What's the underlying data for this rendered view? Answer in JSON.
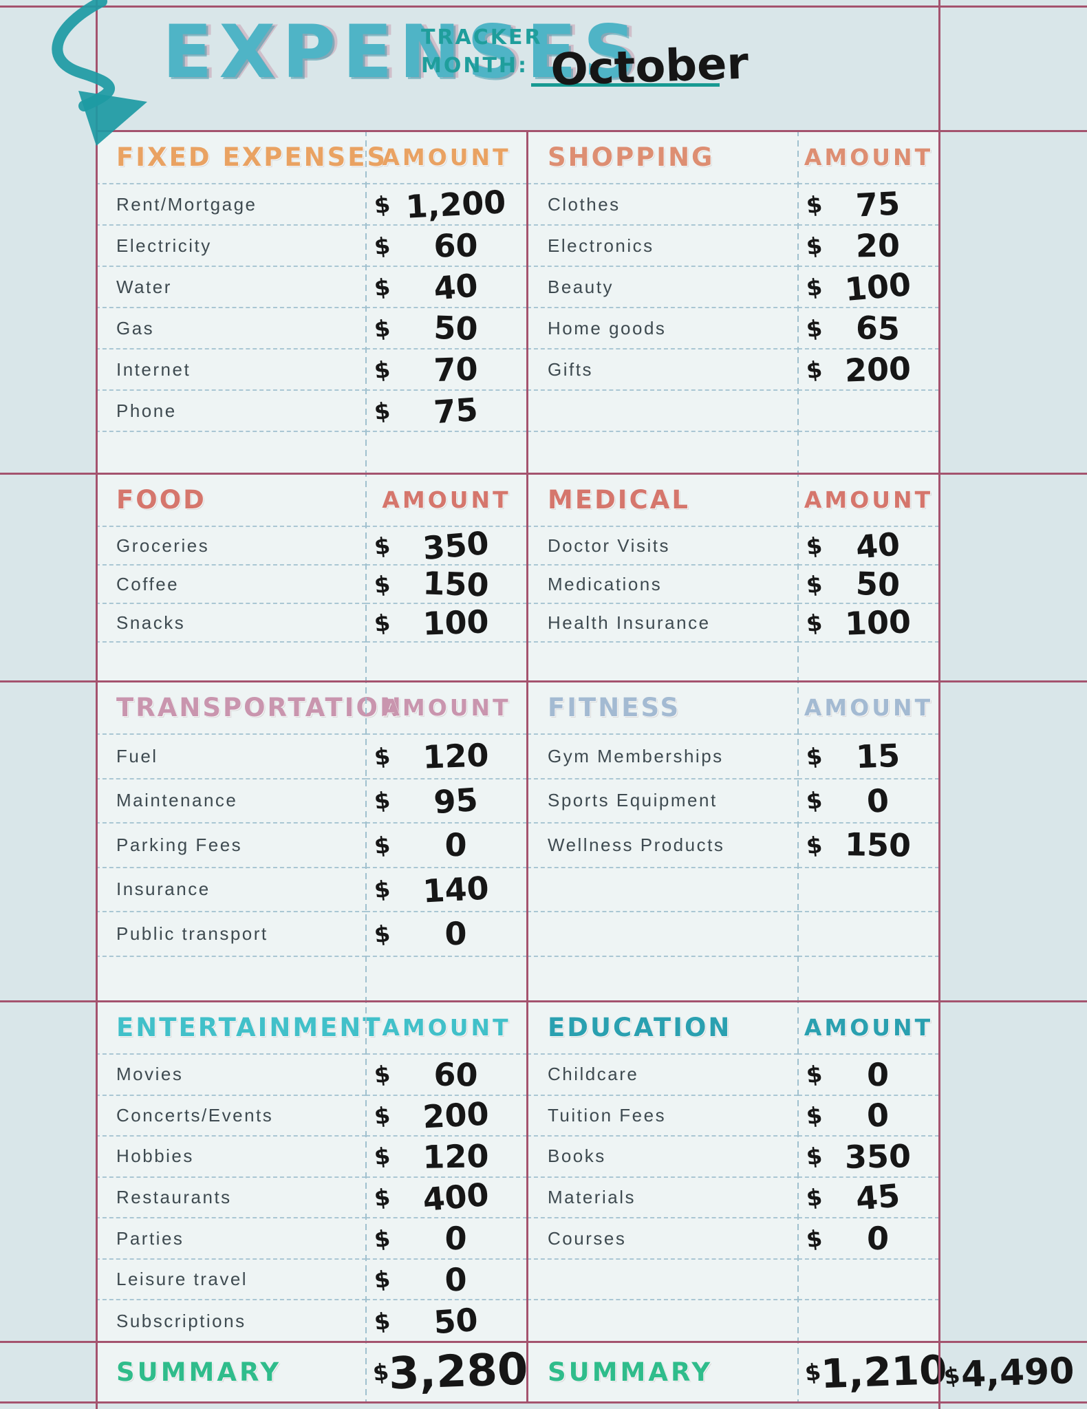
{
  "header": {
    "title": "EXPENSES",
    "tracker_label": "TRACKER",
    "month_label": "MONTH:",
    "month_value": "October"
  },
  "currency_symbol": "$",
  "amount_column_label": "AMOUNT",
  "colors": {
    "title_teal": "#4fb4c6",
    "tracker_teal": "#1f9e9c",
    "grid_pink": "#a4536e",
    "rule_blue": "#9fc0ce",
    "ink": "#161616"
  },
  "bands": [
    {
      "row_count": 7,
      "left": {
        "title": "FIXED EXPENSES",
        "color": "#e9a262",
        "rows": [
          {
            "label": "Rent/Mortgage",
            "amount": "1,200"
          },
          {
            "label": "Electricity",
            "amount": "60"
          },
          {
            "label": "Water",
            "amount": "40"
          },
          {
            "label": "Gas",
            "amount": "50"
          },
          {
            "label": "Internet",
            "amount": "70"
          },
          {
            "label": "Phone",
            "amount": "75"
          }
        ]
      },
      "right": {
        "title": "SHOPPING",
        "color": "#dd8e72",
        "rows": [
          {
            "label": "Clothes",
            "amount": "75"
          },
          {
            "label": "Electronics",
            "amount": "20"
          },
          {
            "label": "Beauty",
            "amount": "100"
          },
          {
            "label": "Home goods",
            "amount": "65"
          },
          {
            "label": "Gifts",
            "amount": "200"
          }
        ]
      }
    },
    {
      "row_count": 4,
      "left": {
        "title": "FOOD",
        "color": "#d5766c",
        "rows": [
          {
            "label": "Groceries",
            "amount": "350"
          },
          {
            "label": "Coffee",
            "amount": "150"
          },
          {
            "label": "Snacks",
            "amount": "100"
          }
        ]
      },
      "right": {
        "title": "MEDICAL",
        "color": "#d5766c",
        "rows": [
          {
            "label": "Doctor Visits",
            "amount": "40"
          },
          {
            "label": "Medications",
            "amount": "50"
          },
          {
            "label": "Health Insurance",
            "amount": "100"
          }
        ]
      }
    },
    {
      "row_count": 6,
      "left": {
        "title": "TRANSPORTATION",
        "color": "#c995ae",
        "rows": [
          {
            "label": "Fuel",
            "amount": "120"
          },
          {
            "label": "Maintenance",
            "amount": "95"
          },
          {
            "label": "Parking Fees",
            "amount": "0"
          },
          {
            "label": "Insurance",
            "amount": "140"
          },
          {
            "label": "Public transport",
            "amount": "0"
          }
        ]
      },
      "right": {
        "title": "FITNESS",
        "color": "#a3bad2",
        "rows": [
          {
            "label": "Gym Memberships",
            "amount": "15"
          },
          {
            "label": "Sports Equipment",
            "amount": "0"
          },
          {
            "label": "Wellness Products",
            "amount": "150"
          }
        ]
      }
    },
    {
      "row_count": 7,
      "left": {
        "title": "ENTERTAINMENT",
        "color": "#41c0c9",
        "rows": [
          {
            "label": "Movies",
            "amount": "60"
          },
          {
            "label": "Concerts/Events",
            "amount": "200"
          },
          {
            "label": "Hobbies",
            "amount": "120"
          },
          {
            "label": "Restaurants",
            "amount": "400"
          },
          {
            "label": "Parties",
            "amount": "0"
          },
          {
            "label": "Leisure travel",
            "amount": "0"
          },
          {
            "label": "Subscriptions",
            "amount": "50"
          }
        ]
      },
      "right": {
        "title": "EDUCATION",
        "color": "#2aa0b0",
        "rows": [
          {
            "label": "Childcare",
            "amount": "0"
          },
          {
            "label": "Tuition Fees",
            "amount": "0"
          },
          {
            "label": "Books",
            "amount": "350"
          },
          {
            "label": "Materials",
            "amount": "45"
          },
          {
            "label": "Courses",
            "amount": "0"
          }
        ]
      }
    }
  ],
  "summary": {
    "label": "SUMMARY",
    "color": "#2fbc8b",
    "left_total": "3,280",
    "right_total": "1,210",
    "grand_total": "4,490"
  }
}
